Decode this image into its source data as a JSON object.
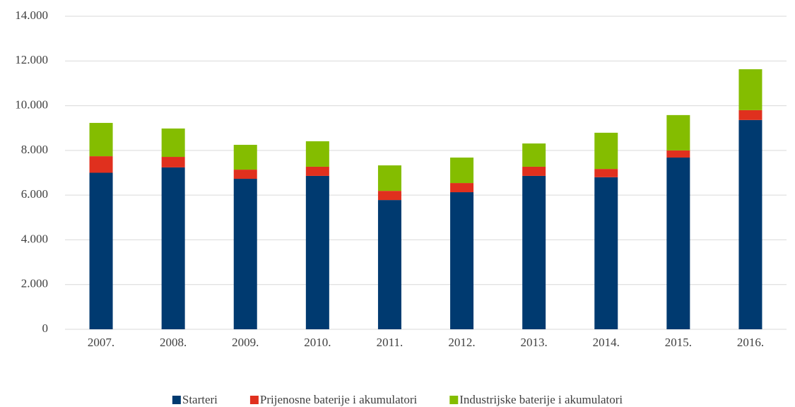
{
  "chart_data": {
    "type": "bar",
    "stacked": true,
    "categories": [
      "2007.",
      "2008.",
      "2009.",
      "2010.",
      "2011.",
      "2012.",
      "2013.",
      "2014.",
      "2015.",
      "2016."
    ],
    "series": [
      {
        "name": "Starteri",
        "color": "#003a70",
        "values": [
          7000,
          7240,
          6730,
          6860,
          5780,
          6130,
          6860,
          6800,
          7680,
          9360
        ]
      },
      {
        "name": "Prijenosne baterije i akumulatori",
        "color": "#e0301e",
        "values": [
          740,
          470,
          410,
          410,
          410,
          410,
          410,
          370,
          320,
          440
        ]
      },
      {
        "name": "Industrijske baterije i akumulatori",
        "color": "#84bd00",
        "values": [
          1490,
          1270,
          1110,
          1140,
          1140,
          1140,
          1040,
          1620,
          1580,
          1830
        ]
      }
    ],
    "ylim": [
      0,
      14000
    ],
    "yticks": [
      0,
      {
        "value": 2000,
        "label": "2.000"
      },
      {
        "value": 4000,
        "label": "4.000"
      },
      {
        "value": 6000,
        "label": "6.000"
      },
      {
        "value": 8000,
        "label": "8.000"
      },
      {
        "value": 10000,
        "label": "10.000"
      },
      {
        "value": 12000,
        "label": "12.000"
      },
      {
        "value": 14000,
        "label": "14.000"
      }
    ],
    "grid": true,
    "legend": "bottom"
  }
}
